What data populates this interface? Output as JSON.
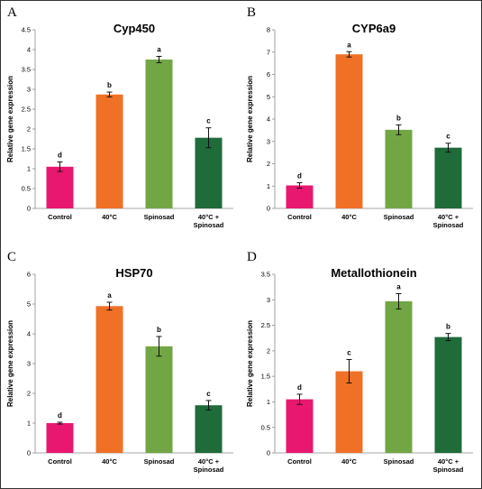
{
  "chart_data": [
    {
      "type": "bar",
      "panel_letter": "A",
      "title": "Cyp450",
      "ylabel": "Relative gene expression",
      "ylim": [
        0,
        4.5
      ],
      "yticks": [
        "0",
        "0.5",
        "1",
        "1.5",
        "2",
        "2.5",
        "3",
        "3.5",
        "4",
        "4.5"
      ],
      "categories": [
        "Control",
        "40°C",
        "Spinosad",
        "40°C + Spinosad"
      ],
      "values": [
        1.05,
        2.87,
        3.75,
        1.78
      ],
      "errors": [
        0.12,
        0.06,
        0.08,
        0.25
      ],
      "letters": [
        "d",
        "b",
        "a",
        "c"
      ],
      "colors": [
        "#e8176f",
        "#f07025",
        "#72a644",
        "#1f6b3a"
      ]
    },
    {
      "type": "bar",
      "panel_letter": "B",
      "title": "CYP6a9",
      "ylabel": "Relative gene expression",
      "ylim": [
        0,
        8
      ],
      "yticks": [
        "0",
        "1",
        "2",
        "3",
        "4",
        "5",
        "6",
        "7",
        "8"
      ],
      "categories": [
        "Control",
        "40°C",
        "Spinosad",
        "40°C + Spinosad"
      ],
      "values": [
        1.03,
        6.9,
        3.52,
        2.72
      ],
      "errors": [
        0.12,
        0.12,
        0.22,
        0.2
      ],
      "letters": [
        "d",
        "a",
        "b",
        "c"
      ],
      "colors": [
        "#e8176f",
        "#f07025",
        "#72a644",
        "#1f6b3a"
      ]
    },
    {
      "type": "bar",
      "panel_letter": "C",
      "title": "HSP70",
      "ylabel": "Relative gene expression",
      "ylim": [
        0,
        6
      ],
      "yticks": [
        "0",
        "1",
        "2",
        "3",
        "4",
        "5",
        "6"
      ],
      "categories": [
        "Control",
        "40°C",
        "Spinosad",
        "40°C + Spinosad"
      ],
      "values": [
        1.0,
        4.93,
        3.58,
        1.6
      ],
      "errors": [
        0.03,
        0.13,
        0.33,
        0.16
      ],
      "letters": [
        "d",
        "a",
        "b",
        "c"
      ],
      "colors": [
        "#e8176f",
        "#f07025",
        "#72a644",
        "#1f6b3a"
      ]
    },
    {
      "type": "bar",
      "panel_letter": "D",
      "title": "Metallothionein",
      "ylabel": "Relative gene expression",
      "ylim": [
        0,
        3.5
      ],
      "yticks": [
        "0",
        "0.5",
        "1",
        "1.5",
        "2",
        "2.5",
        "3",
        "3.5"
      ],
      "categories": [
        "Control",
        "40°C",
        "Spinosad",
        "40°C + Spinosad"
      ],
      "values": [
        1.05,
        1.6,
        2.97,
        2.27
      ],
      "errors": [
        0.1,
        0.23,
        0.15,
        0.07
      ],
      "letters": [
        "d",
        "c",
        "a",
        "b"
      ],
      "colors": [
        "#e8176f",
        "#f07025",
        "#72a644",
        "#1f6b3a"
      ]
    }
  ]
}
